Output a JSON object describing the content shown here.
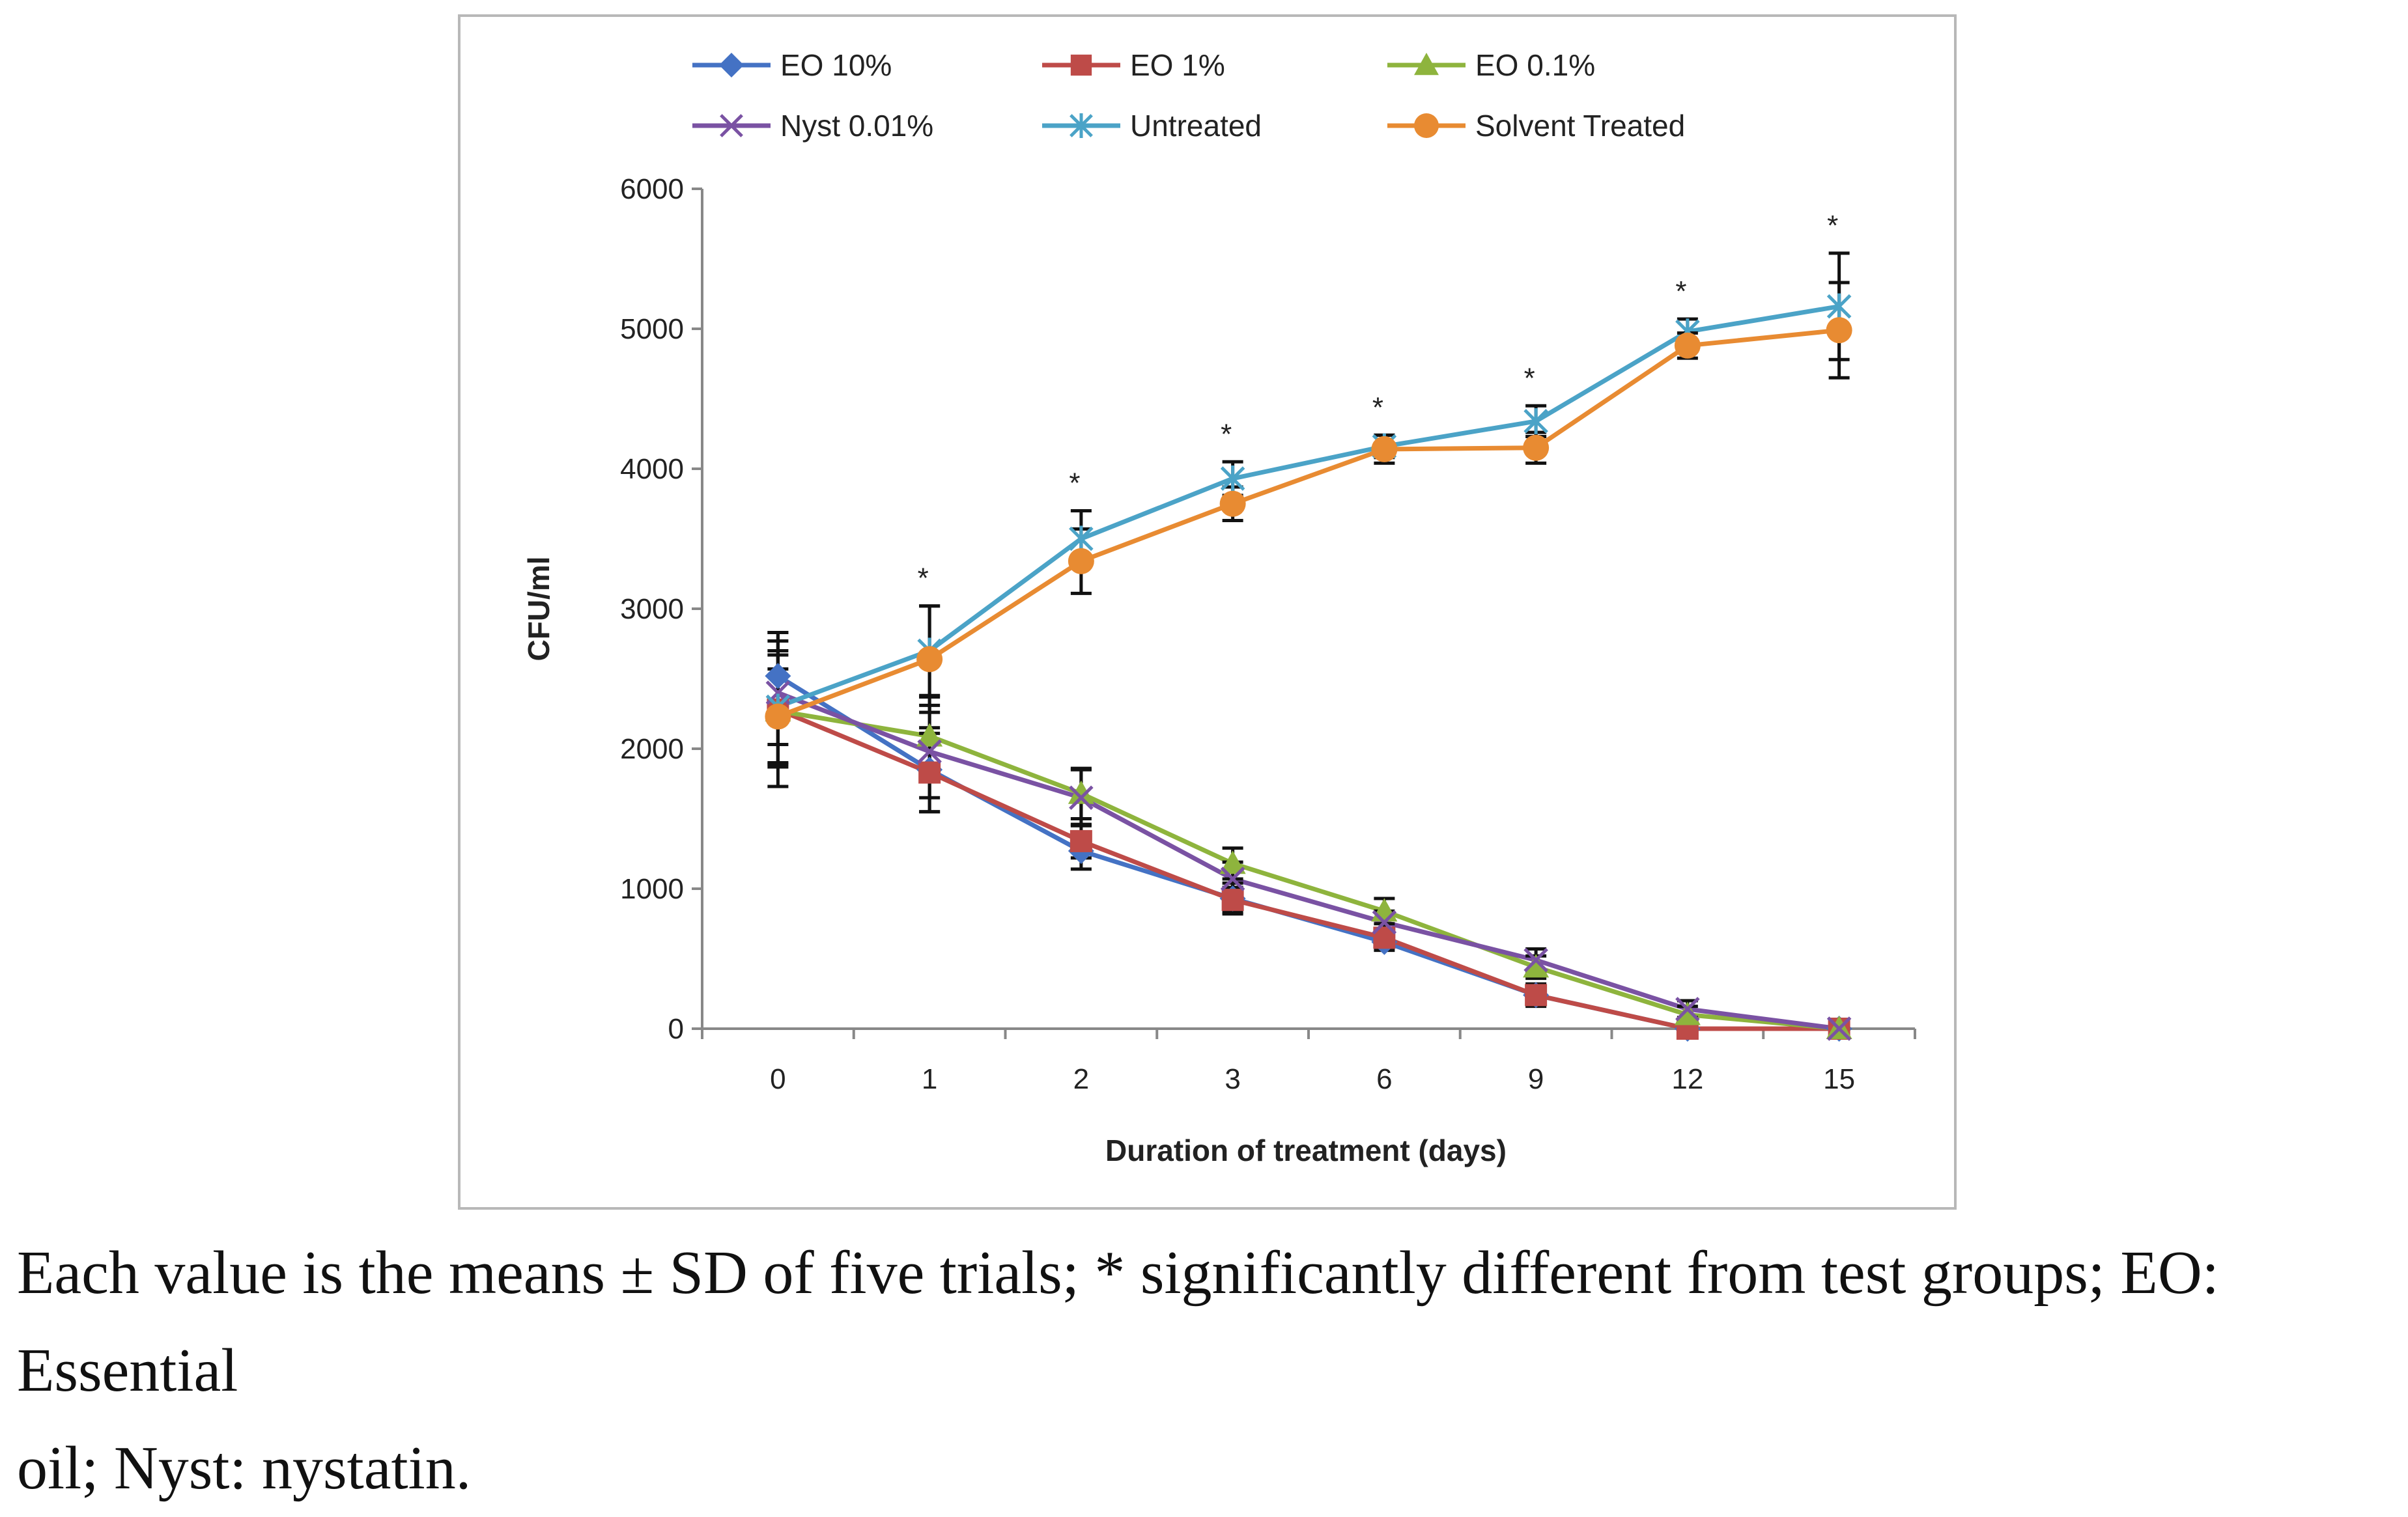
{
  "chart_data": {
    "type": "line",
    "xlabel": "Duration of treatment (days)",
    "ylabel": "CFU/ml",
    "categories": [
      "0",
      "1",
      "2",
      "3",
      "6",
      "9",
      "12",
      "15"
    ],
    "ylim": [
      0,
      6000
    ],
    "yticks": [
      "0",
      "1000",
      "2000",
      "3000",
      "4000",
      "5000",
      "6000"
    ],
    "grid": false,
    "legend_position": "top",
    "significance_marker": "*",
    "significant_points": [
      1,
      2,
      3,
      4,
      5,
      6,
      7
    ],
    "series": [
      {
        "name": "EO 10%",
        "color": "#4472C4",
        "marker": "diamond",
        "values": [
          2520,
          1850,
          1270,
          930,
          620,
          240,
          0,
          0
        ],
        "errors": [
          310,
          300,
          130,
          110,
          60,
          80,
          0,
          0
        ]
      },
      {
        "name": "EO 1%",
        "color": "#BE4B48",
        "marker": "square",
        "values": [
          2280,
          1830,
          1340,
          920,
          650,
          240,
          0,
          0
        ],
        "errors": [
          550,
          280,
          120,
          90,
          50,
          60,
          0,
          0
        ]
      },
      {
        "name": "EO 0.1%",
        "color": "#8EB43D",
        "marker": "triangle",
        "values": [
          2270,
          2090,
          1680,
          1180,
          840,
          440,
          100,
          0
        ],
        "errors": [
          400,
          280,
          180,
          110,
          90,
          80,
          60,
          0
        ]
      },
      {
        "name": "Nyst 0.01%",
        "color": "#7A52A3",
        "marker": "x",
        "values": [
          2400,
          1980,
          1650,
          1070,
          760,
          490,
          140,
          0
        ],
        "errors": [
          370,
          330,
          200,
          120,
          80,
          80,
          60,
          0
        ]
      },
      {
        "name": "Untreated",
        "color": "#4BA3C7",
        "marker": "star",
        "values": [
          2300,
          2700,
          3500,
          3930,
          4160,
          4340,
          4980,
          5160
        ],
        "errors": [
          400,
          320,
          200,
          120,
          80,
          110,
          90,
          380
        ]
      },
      {
        "name": "Solvent Treated",
        "color": "#E88B32",
        "marker": "circle",
        "values": [
          2230,
          2640,
          3340,
          3750,
          4140,
          4150,
          4880,
          4990
        ],
        "errors": [
          340,
          380,
          230,
          120,
          100,
          110,
          90,
          340
        ]
      }
    ]
  },
  "caption_line1": "Each value is the means ± SD of five trials; * significantly different from test groups; EO: Essential",
  "caption_line2": "oil; Nyst: nystatin."
}
